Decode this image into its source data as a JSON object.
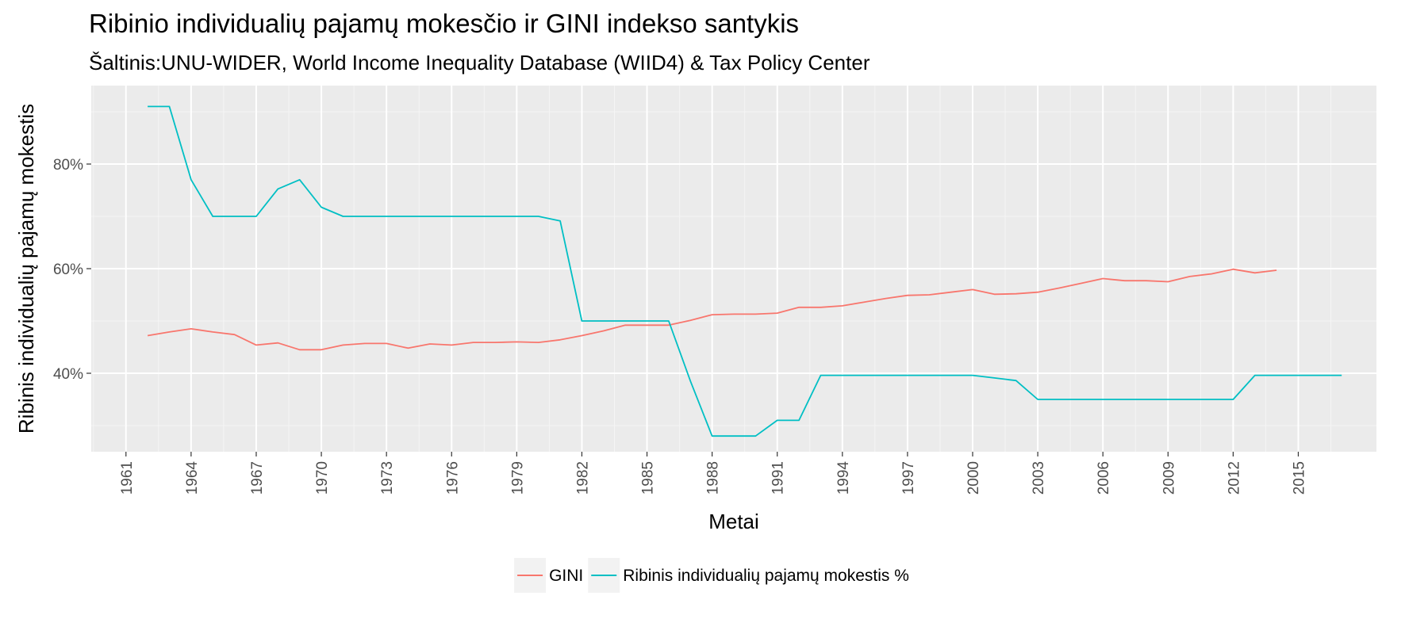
{
  "chart_data": {
    "type": "line",
    "title": "Ribinio individualių pajamų mokesčio ir GINI indekso santykis",
    "subtitle": "Šaltinis:UNU-WIDER, World Income Inequality Database (WIID4) & Tax Policy Center",
    "xlabel": "Metai",
    "ylabel": "Ribinis individualių pajamų mokestis",
    "xlim": [
      1959.4,
      2018.6
    ],
    "ylim": [
      25,
      95
    ],
    "x_ticks": [
      1961,
      1964,
      1967,
      1970,
      1973,
      1976,
      1979,
      1982,
      1985,
      1988,
      1991,
      1994,
      1997,
      2000,
      2003,
      2006,
      2009,
      2012,
      2015
    ],
    "x_tick_labels": [
      "1961",
      "1964",
      "1967",
      "1970",
      "1973",
      "1976",
      "1979",
      "1982",
      "1985",
      "1988",
      "1991",
      "1994",
      "1997",
      "2000",
      "2003",
      "2006",
      "2009",
      "2012",
      "2015"
    ],
    "y_ticks": [
      40,
      60,
      80
    ],
    "y_tick_labels": [
      "40%",
      "60%",
      "80%"
    ],
    "grid": true,
    "legend_position": "bottom",
    "series": [
      {
        "name": "GINI",
        "color": "#F8766D",
        "x": [
          1962,
          1963,
          1964,
          1965,
          1966,
          1967,
          1968,
          1969,
          1970,
          1971,
          1972,
          1973,
          1974,
          1975,
          1976,
          1977,
          1978,
          1979,
          1980,
          1981,
          1982,
          1983,
          1984,
          1985,
          1986,
          1987,
          1988,
          1989,
          1990,
          1991,
          1992,
          1993,
          1994,
          1995,
          1996,
          1997,
          1998,
          1999,
          2000,
          2001,
          2002,
          2003,
          2004,
          2005,
          2006,
          2007,
          2008,
          2009,
          2010,
          2011,
          2012,
          2013,
          2014
        ],
        "values": [
          47.2,
          47.9,
          48.5,
          47.9,
          47.4,
          45.4,
          45.8,
          44.5,
          44.5,
          45.4,
          45.7,
          45.7,
          44.8,
          45.6,
          45.4,
          45.9,
          45.9,
          46.0,
          45.9,
          46.4,
          47.2,
          48.1,
          49.2,
          49.2,
          49.2,
          50.1,
          51.2,
          51.3,
          51.3,
          51.5,
          52.6,
          52.6,
          52.9,
          53.6,
          54.3,
          54.9,
          55.0,
          55.5,
          56.0,
          55.1,
          55.2,
          55.5,
          56.3,
          57.2,
          58.1,
          57.7,
          57.7,
          57.5,
          58.5,
          59.0,
          59.9,
          59.2,
          59.7
        ]
      },
      {
        "name": "Ribinis individualių pajamų mokestis %",
        "color": "#00BFC4",
        "x": [
          1962,
          1963,
          1964,
          1965,
          1966,
          1967,
          1968,
          1969,
          1970,
          1971,
          1972,
          1973,
          1974,
          1975,
          1976,
          1977,
          1978,
          1979,
          1980,
          1981,
          1982,
          1983,
          1984,
          1985,
          1986,
          1987,
          1988,
          1989,
          1990,
          1991,
          1992,
          1993,
          1994,
          1995,
          1996,
          1997,
          1998,
          1999,
          2000,
          2001,
          2002,
          2003,
          2004,
          2005,
          2006,
          2007,
          2008,
          2009,
          2010,
          2011,
          2012,
          2013,
          2014,
          2015,
          2016,
          2017
        ],
        "values": [
          91,
          91,
          77,
          70,
          70,
          70,
          75.25,
          77,
          71.75,
          70,
          70,
          70,
          70,
          70,
          70,
          70,
          70,
          70,
          70,
          69.13,
          50,
          50,
          50,
          50,
          50,
          38.5,
          28,
          28,
          28,
          31,
          31,
          39.6,
          39.6,
          39.6,
          39.6,
          39.6,
          39.6,
          39.6,
          39.6,
          39.1,
          38.6,
          35,
          35,
          35,
          35,
          35,
          35,
          35,
          35,
          35,
          35,
          39.6,
          39.6,
          39.6,
          39.6,
          39.6
        ]
      }
    ]
  }
}
